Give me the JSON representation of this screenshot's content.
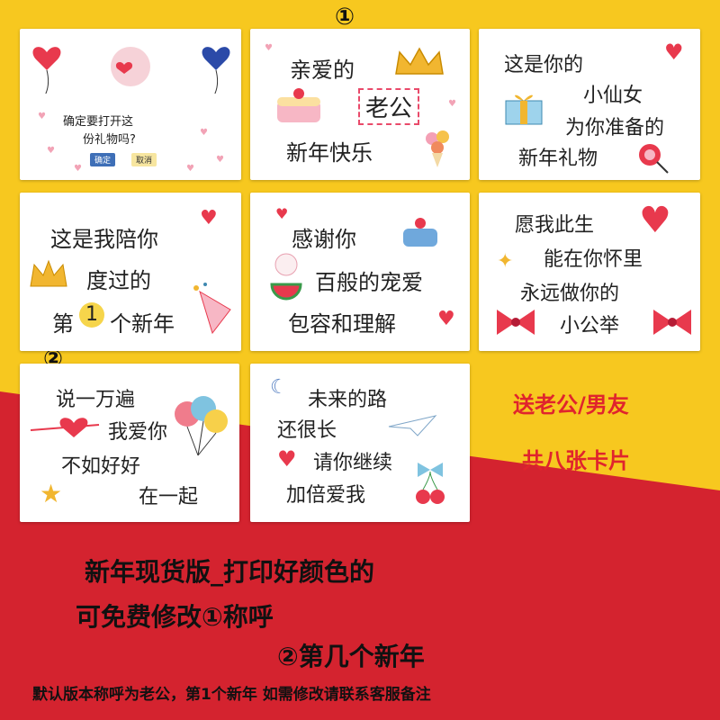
{
  "markers": {
    "one": "①",
    "two": "②"
  },
  "cards": [
    {
      "lines": [
        "确定要打开这",
        "份礼物吗?"
      ],
      "buttons": [
        "确定",
        "取消"
      ]
    },
    {
      "lines": [
        "亲爱的",
        "老公",
        "新年快乐"
      ]
    },
    {
      "lines": [
        "这是你的",
        "小仙女",
        "为你准备的",
        "新年礼物"
      ]
    },
    {
      "lines": [
        "这是我陪你",
        "度过的",
        "第",
        "1",
        "个新年"
      ]
    },
    {
      "lines": [
        "感谢你",
        "百般的宠爱",
        "包容和理解"
      ]
    },
    {
      "lines": [
        "愿我此生",
        "能在你怀里",
        "永远做你的",
        "小公举"
      ]
    },
    {
      "lines": [
        "说一万遍",
        "我爱你",
        "不如好好",
        "在一起"
      ]
    },
    {
      "lines": [
        "未来的路",
        "还很长",
        "请你继续",
        "加倍爱我"
      ]
    }
  ],
  "side": {
    "line1": "送老公/男友",
    "line2": "共八张卡片"
  },
  "bottom": {
    "line1": "新年现货版_打印好颜色的",
    "line2": "可免费修改①称呼",
    "line3": "②第几个新年",
    "note": "默认版本称呼为老公，第1个新年 如需修改请联系客服备注"
  },
  "colors": {
    "yellow": "#f7c81f",
    "red": "#d4232f",
    "accent_text": "#e0242d"
  }
}
